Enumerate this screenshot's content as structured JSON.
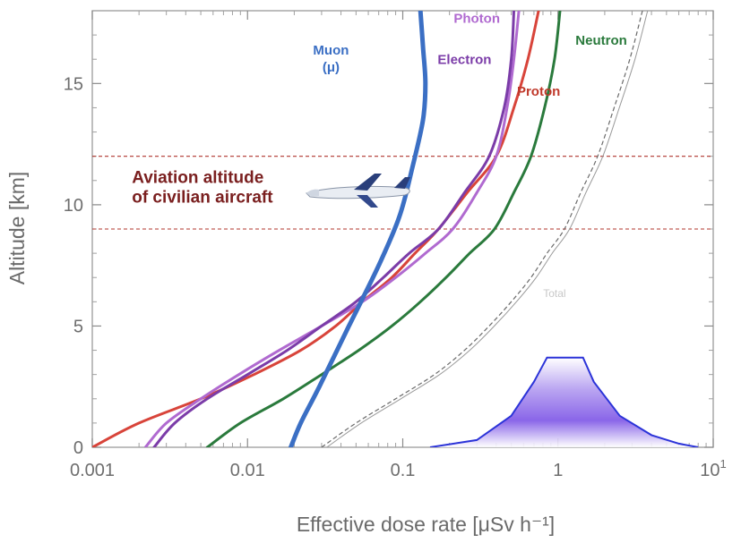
{
  "chart_data": {
    "type": "line",
    "title": "",
    "xlabel": "Effective dose rate [μSv h⁻¹]",
    "ylabel": "Altitude [km]",
    "xscale": "log",
    "xlim": [
      0.001,
      10
    ],
    "ylim": [
      0,
      18
    ],
    "xticks": [
      {
        "value": 0.001,
        "label": "0.001"
      },
      {
        "value": 0.01,
        "label": "0.01"
      },
      {
        "value": 0.1,
        "label": "0.1"
      },
      {
        "value": 1,
        "label": "1"
      },
      {
        "value": 10,
        "label": "10",
        "sup": "1"
      }
    ],
    "yticks": [
      {
        "value": 0,
        "label": "0"
      },
      {
        "value": 5,
        "label": "5"
      },
      {
        "value": 10,
        "label": "10"
      },
      {
        "value": 15,
        "label": "15"
      }
    ],
    "series": [
      {
        "name": "Muon\n(μ)",
        "color": "#3b6fc4",
        "width": 5,
        "points": [
          [
            0.019,
            0
          ],
          [
            0.022,
            1
          ],
          [
            0.029,
            2.5
          ],
          [
            0.045,
            5
          ],
          [
            0.07,
            7.5
          ],
          [
            0.095,
            9.5
          ],
          [
            0.115,
            11.5
          ],
          [
            0.135,
            13.5
          ],
          [
            0.14,
            15
          ],
          [
            0.135,
            16.5
          ],
          [
            0.13,
            18
          ]
        ]
      },
      {
        "name": "Photon",
        "color": "#b06ad0",
        "width": 3,
        "points": [
          [
            0.0022,
            0
          ],
          [
            0.003,
            1
          ],
          [
            0.005,
            2
          ],
          [
            0.0088,
            3
          ],
          [
            0.016,
            4
          ],
          [
            0.03,
            5
          ],
          [
            0.055,
            6
          ],
          [
            0.09,
            7
          ],
          [
            0.14,
            8
          ],
          [
            0.21,
            9
          ],
          [
            0.3,
            10.5
          ],
          [
            0.4,
            12
          ],
          [
            0.47,
            14
          ],
          [
            0.52,
            16
          ],
          [
            0.56,
            18
          ]
        ]
      },
      {
        "name": "Electron",
        "color": "#7b3ca8",
        "width": 3,
        "points": [
          [
            0.0025,
            0
          ],
          [
            0.0034,
            1
          ],
          [
            0.0055,
            2
          ],
          [
            0.01,
            3
          ],
          [
            0.018,
            4
          ],
          [
            0.03,
            5
          ],
          [
            0.05,
            6
          ],
          [
            0.075,
            7
          ],
          [
            0.11,
            8
          ],
          [
            0.17,
            9
          ],
          [
            0.25,
            10.5
          ],
          [
            0.36,
            12
          ],
          [
            0.45,
            14
          ],
          [
            0.5,
            16
          ],
          [
            0.52,
            18
          ]
        ]
      },
      {
        "name": "Proton",
        "color": "#d8443a",
        "width": 3,
        "points": [
          [
            0.001,
            0
          ],
          [
            0.002,
            1
          ],
          [
            0.005,
            2
          ],
          [
            0.011,
            3
          ],
          [
            0.022,
            4
          ],
          [
            0.037,
            5
          ],
          [
            0.055,
            6
          ],
          [
            0.085,
            7
          ],
          [
            0.12,
            8
          ],
          [
            0.17,
            9
          ],
          [
            0.26,
            10.5
          ],
          [
            0.4,
            12
          ],
          [
            0.52,
            14
          ],
          [
            0.64,
            16
          ],
          [
            0.75,
            18
          ]
        ]
      },
      {
        "name": "Neutron",
        "color": "#2a7a3c",
        "width": 3,
        "points": [
          [
            0.0055,
            0
          ],
          [
            0.009,
            1
          ],
          [
            0.017,
            2
          ],
          [
            0.03,
            3
          ],
          [
            0.052,
            4
          ],
          [
            0.085,
            5
          ],
          [
            0.13,
            6
          ],
          [
            0.19,
            7
          ],
          [
            0.27,
            8
          ],
          [
            0.39,
            9
          ],
          [
            0.52,
            10.5
          ],
          [
            0.67,
            12
          ],
          [
            0.82,
            14
          ],
          [
            0.95,
            16
          ],
          [
            1.03,
            18
          ]
        ]
      },
      {
        "name": "",
        "color": "#6a6a6a",
        "width": 1.2,
        "dash": "5,3",
        "points": [
          [
            0.03,
            0
          ],
          [
            0.05,
            1
          ],
          [
            0.09,
            2
          ],
          [
            0.16,
            3
          ],
          [
            0.25,
            4
          ],
          [
            0.36,
            5
          ],
          [
            0.5,
            6
          ],
          [
            0.67,
            7
          ],
          [
            0.85,
            8
          ],
          [
            1.1,
            9
          ],
          [
            1.4,
            10.5
          ],
          [
            1.8,
            12
          ],
          [
            2.3,
            14
          ],
          [
            2.9,
            16
          ],
          [
            3.5,
            18
          ]
        ]
      }
    ],
    "bands": [
      {
        "label": "Aviation altitude\nof civilian aircraft",
        "ymin": 9,
        "ymax": 12,
        "color": "#b0362e"
      }
    ],
    "annotations": [
      {
        "text": "Muon\n(μ)",
        "color": "#3b6fc4",
        "at": [
          0.0345,
          16.2
        ]
      },
      {
        "text": "Photon",
        "color": "#b06ad0",
        "at": [
          0.3,
          17.5
        ]
      },
      {
        "text": "Electron",
        "color": "#7b3ca8",
        "at": [
          0.25,
          15.8
        ]
      },
      {
        "text": "Proton",
        "color": "#c0392b",
        "at": [
          0.75,
          14.5
        ]
      },
      {
        "text": "Neutron",
        "color": "#2a7a3c",
        "at": [
          1.9,
          16.6
        ]
      },
      {
        "text": "Aviation altitude\nof civilian aircraft",
        "color": "#7a1f1f",
        "at": [
          0.0018,
          10.9
        ]
      },
      {
        "text": "Total",
        "color": "#cfcfcf",
        "at": [
          0.95,
          6.2
        ]
      }
    ],
    "distribution": {
      "color": "#2b33d8",
      "points": [
        [
          0.15,
          0
        ],
        [
          0.3,
          0.3
        ],
        [
          0.5,
          1.3
        ],
        [
          0.7,
          2.7
        ],
        [
          0.85,
          3.7
        ],
        [
          1.45,
          3.7
        ],
        [
          1.7,
          2.7
        ],
        [
          2.5,
          1.3
        ],
        [
          4,
          0.5
        ],
        [
          6,
          0.15
        ],
        [
          8,
          0
        ]
      ]
    },
    "grid": false,
    "legend": "none"
  }
}
